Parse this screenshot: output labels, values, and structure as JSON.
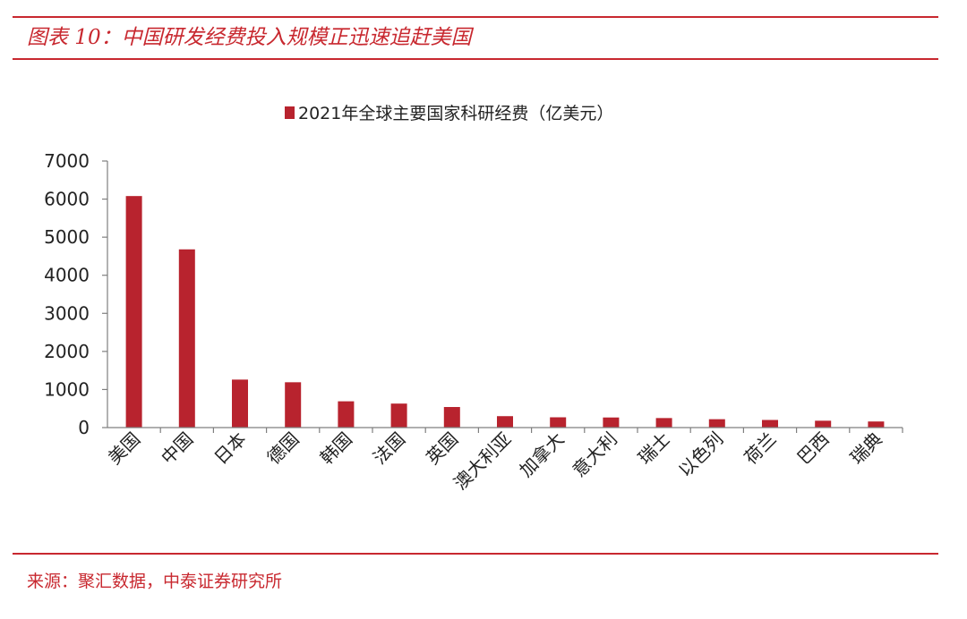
{
  "figure": {
    "title": "图表 10：中国研发经费投入规模正迅速追赶美国",
    "source": "来源：聚汇数据，中泰证券研究所"
  },
  "colors": {
    "accent": "#c8282f",
    "bar": "#b8232e",
    "axis": "#7f7f7f"
  },
  "chart_data": {
    "type": "bar",
    "title": "",
    "legend": "2021年全球主要国家科研经费（亿美元）",
    "legend_position": "top-center",
    "categories": [
      "美国",
      "中国",
      "日本",
      "德国",
      "韩国",
      "法国",
      "英国",
      "澳大利亚",
      "加拿大",
      "意大利",
      "瑞士",
      "以色列",
      "荷兰",
      "巴西",
      "瑞典"
    ],
    "values": [
      6080,
      4680,
      1260,
      1190,
      690,
      630,
      540,
      300,
      270,
      265,
      250,
      220,
      200,
      180,
      160
    ],
    "ylim": [
      0,
      7000
    ],
    "yticks": [
      0,
      1000,
      2000,
      3000,
      4000,
      5000,
      6000,
      7000
    ],
    "grid": false,
    "xlabel": "",
    "ylabel": ""
  }
}
